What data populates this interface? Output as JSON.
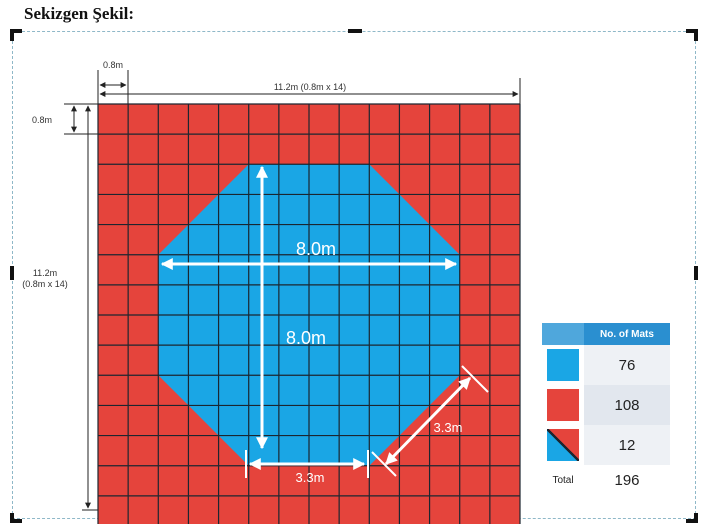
{
  "heading": "Sekizgen Şekil",
  "colors": {
    "mat_red": "#e5443c",
    "mat_blue": "#1aa6e5",
    "grid_line": "#1c2630",
    "legend_header": "#2a8fd0"
  },
  "grid": {
    "cells_per_side": 14
  },
  "dimensions": {
    "mat_width": "0.8m",
    "mat_height": "0.8m",
    "overall_width": "11.2m (0.8m x 14)",
    "overall_height_line1": "11.2m",
    "overall_height_line2": "(0.8m x 14)",
    "octagon_width": "8.0m",
    "octagon_height": "8.0m",
    "octagon_side": "3.3m",
    "octagon_diagonal_side": "3.3m"
  },
  "legend": {
    "header": "No. of Mats",
    "rows": [
      {
        "swatch": "blue",
        "count": "76"
      },
      {
        "swatch": "red",
        "count": "108"
      },
      {
        "swatch": "split",
        "count": "12"
      }
    ],
    "total_label": "Total",
    "total_value": "196"
  }
}
